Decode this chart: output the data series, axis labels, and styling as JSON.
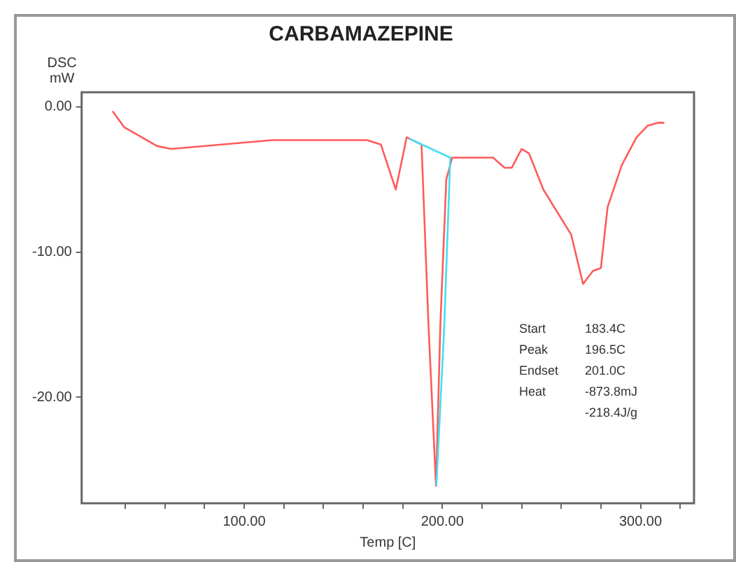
{
  "chart_data": {
    "type": "line",
    "title": "CARBAMAZEPINE",
    "xlabel": "Temp [C]",
    "ylabel": "DSC\nmW",
    "xlim": [
      18,
      327
    ],
    "ylim": [
      -27.3,
      1
    ],
    "xticks": [
      {
        "value": 40,
        "label": null
      },
      {
        "value": 60,
        "label": null
      },
      {
        "value": 80,
        "label": null
      },
      {
        "value": 100,
        "label": "100.00"
      },
      {
        "value": 120,
        "label": null
      },
      {
        "value": 140,
        "label": null
      },
      {
        "value": 160,
        "label": null
      },
      {
        "value": 180,
        "label": null
      },
      {
        "value": 200,
        "label": "200.00"
      },
      {
        "value": 220,
        "label": null
      },
      {
        "value": 240,
        "label": null
      },
      {
        "value": 260,
        "label": null
      },
      {
        "value": 280,
        "label": null
      },
      {
        "value": 300,
        "label": "300.00"
      },
      {
        "value": 320,
        "label": null
      }
    ],
    "yticks": [
      {
        "value": 0,
        "label": "0.00"
      },
      {
        "value": -10,
        "label": "-10.00"
      },
      {
        "value": -20,
        "label": "-20.00"
      }
    ],
    "grid": false,
    "legend": false,
    "marker": "none",
    "line_style": "solid",
    "series": [
      {
        "color": "#ff5a5a",
        "x": [
          33.6,
          39.4,
          56,
          63,
          114,
          162,
          169,
          176.5,
          182,
          189.5,
          193,
          196.8,
          199,
          202,
          205,
          225.6,
          231.4,
          235,
          240,
          243.7,
          251,
          265,
          271,
          276,
          280,
          283.4,
          290.6,
          298,
          303.6,
          308.7,
          312
        ],
        "values": [
          -0.3,
          -1.4,
          -2.7,
          -2.9,
          -2.3,
          -2.3,
          -2.6,
          -5.7,
          -2.1,
          -2.6,
          -15,
          -26.1,
          -15,
          -5,
          -3.5,
          -3.5,
          -4.2,
          -4.2,
          -2.9,
          -3.2,
          -5.7,
          -8.8,
          -12.2,
          -11.3,
          -11.1,
          -6.9,
          -4,
          -2.1,
          -1.3,
          -1.1,
          -1.1
        ]
      },
      {
        "color": "#40e0f0",
        "x": [
          183.4,
          204,
          201,
          197
        ],
        "values": [
          -2.2,
          -3.5,
          -15,
          -26.1
        ]
      }
    ],
    "annotations": [
      "Start 183.4C",
      "Peak 196.5C",
      "Endset 201.0C",
      "Heat -873.8mJ",
      "-218.4J/g"
    ]
  }
}
